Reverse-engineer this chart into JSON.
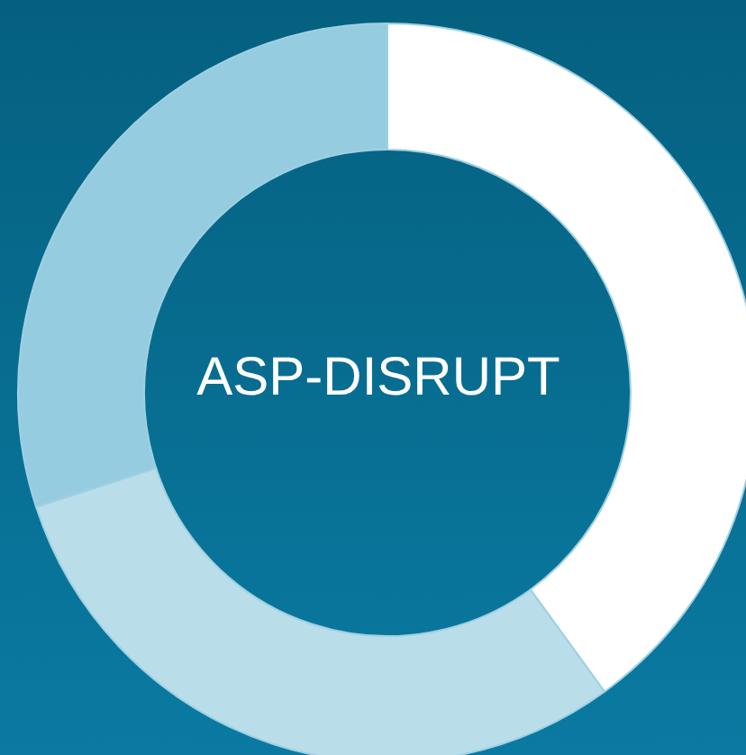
{
  "chart_data": {
    "type": "donut",
    "title": "ASP-DISRUPT",
    "categories": [
      null,
      null,
      null
    ],
    "values": [
      40,
      30,
      30
    ],
    "colors": [
      "#ffffff",
      "#b9dde9",
      "#96cce0"
    ],
    "legend": false
  }
}
